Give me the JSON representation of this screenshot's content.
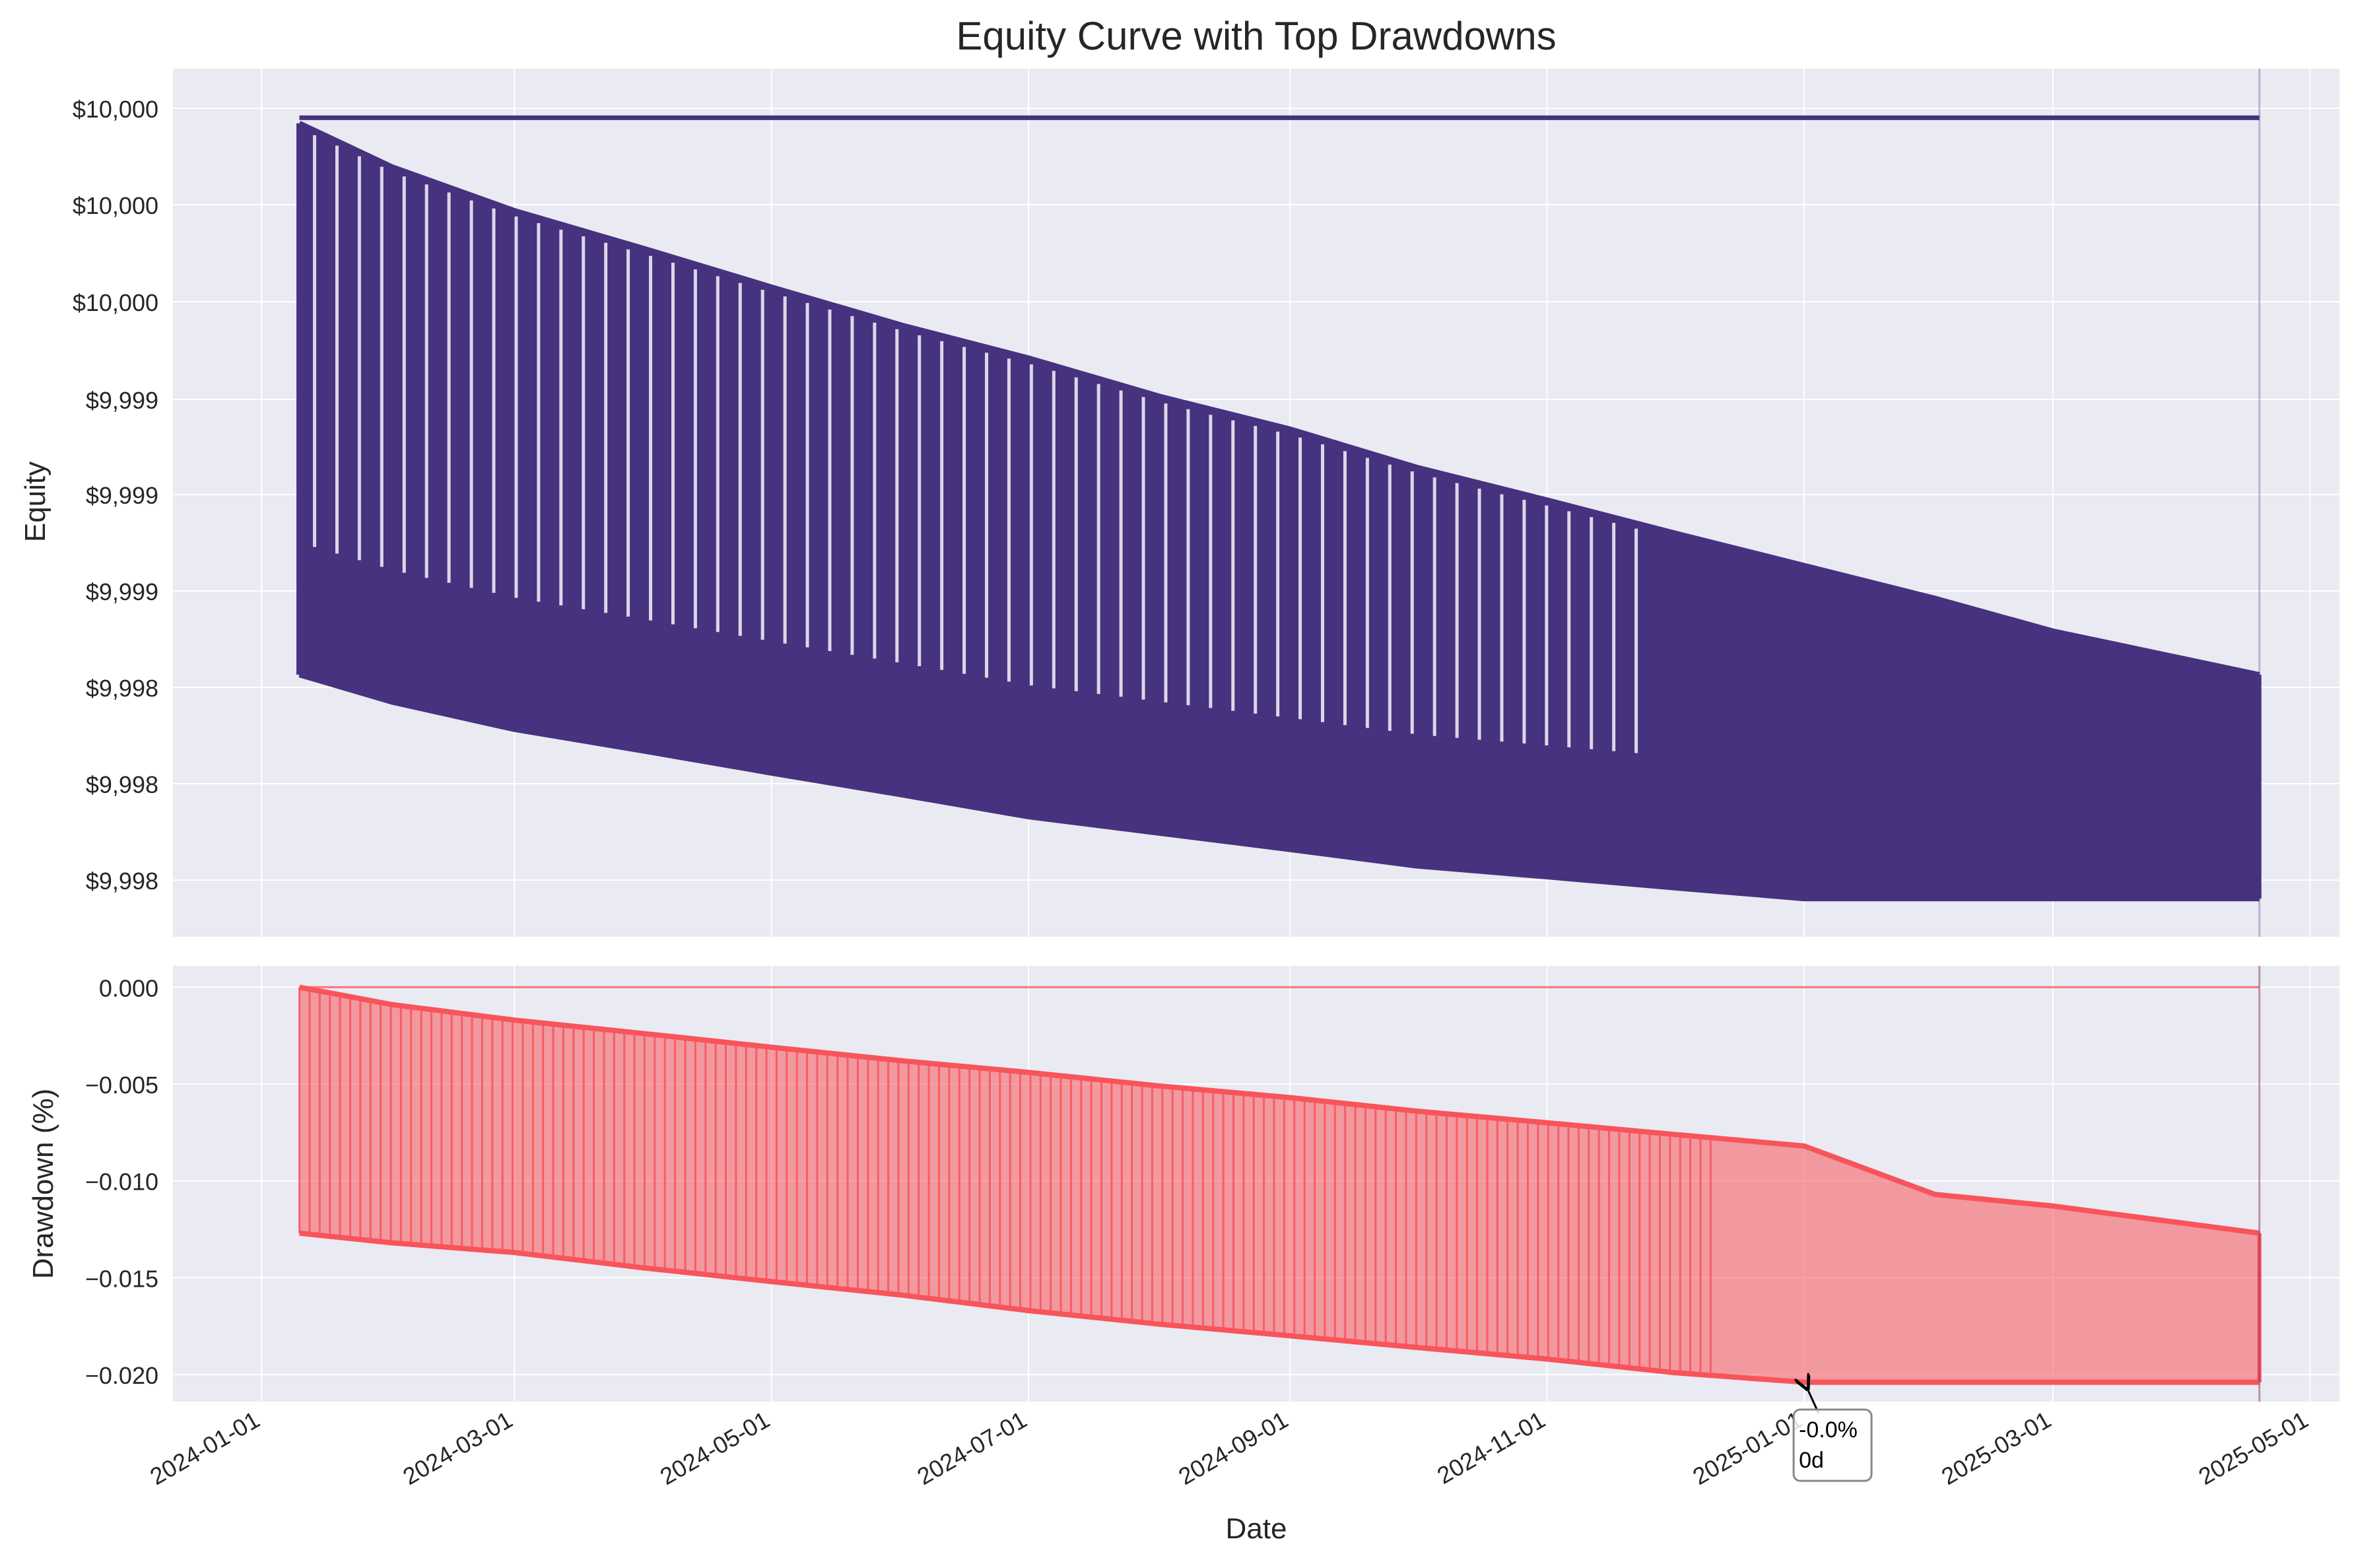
{
  "chart_data": {
    "type": "line",
    "title": "Equity Curve with Top Drawdowns",
    "xlabel": "Date",
    "x_ticks": [
      "2024-01-01",
      "2024-03-01",
      "2024-05-01",
      "2024-07-01",
      "2024-09-01",
      "2024-11-01",
      "2025-01-01",
      "2025-03-01",
      "2025-05-01"
    ],
    "x_range": [
      "2023-12-11",
      "2025-05-08"
    ],
    "grid": true,
    "legend": "none",
    "colors": {
      "equity": "#46327e",
      "drawdown": "#f8545b",
      "background": "#eaeaf2"
    },
    "panels": [
      {
        "name": "equity",
        "ylabel": "Equity",
        "y_ticks": [
          "$10,000",
          "$10,000",
          "$10,000",
          "$9,999",
          "$9,999",
          "$9,999",
          "$9,998",
          "$9,998",
          "$9,998"
        ],
        "series": [
          {
            "peak_value": 10000.0,
            "x": [
              "2024-01-10",
              "2024-02-01",
              "2024-03-01",
              "2024-04-01",
              "2024-05-01",
              "2024-06-01",
              "2024-07-01",
              "2024-08-01",
              "2024-09-01",
              "2024-10-01",
              "2024-11-01",
              "2024-12-01",
              "2025-01-01",
              "2025-02-01",
              "2025-03-01",
              "2025-04-19"
            ],
            "upper_envelope": [
              9999.99,
              9999.91,
              9999.83,
              9999.76,
              9999.69,
              9999.62,
              9999.56,
              9999.49,
              9999.43,
              9999.36,
              9999.3,
              9999.24,
              9999.18,
              9999.12,
              9999.06,
              9998.98
            ],
            "lower_envelope": [
              9998.98,
              9998.93,
              9998.88,
              9998.84,
              9998.8,
              9998.76,
              9998.72,
              9998.69,
              9998.66,
              9998.63,
              9998.61,
              9998.59,
              9998.57,
              9998.57,
              9998.57,
              9998.57
            ]
          }
        ]
      },
      {
        "name": "drawdown",
        "ylabel": "Drawdown (%)",
        "y_ticks": [
          "0.000",
          "−0.005",
          "−0.010",
          "−0.015",
          "−0.020"
        ],
        "ylim": [
          -0.0214,
          0.0011
        ],
        "series": [
          {
            "x": [
              "2024-01-10",
              "2024-02-01",
              "2024-03-01",
              "2024-04-01",
              "2024-05-01",
              "2024-06-01",
              "2024-07-01",
              "2024-08-01",
              "2024-09-01",
              "2024-10-01",
              "2024-11-01",
              "2024-12-01",
              "2025-01-01",
              "2025-02-01",
              "2025-03-01",
              "2025-04-19"
            ],
            "upper_envelope": [
              0.0,
              -0.0009,
              -0.0017,
              -0.0024,
              -0.0031,
              -0.0038,
              -0.0044,
              -0.0051,
              -0.0057,
              -0.0064,
              -0.007,
              -0.0076,
              -0.0082,
              -0.0107,
              -0.0113,
              -0.0127
            ],
            "lower_envelope": [
              -0.0127,
              -0.0132,
              -0.0137,
              -0.0145,
              -0.0152,
              -0.0159,
              -0.0167,
              -0.0174,
              -0.018,
              -0.0186,
              -0.0192,
              -0.0199,
              -0.0204,
              -0.0204,
              -0.0204,
              -0.0204
            ]
          }
        ],
        "annotations": [
          {
            "text_line1": "-0.0%",
            "text_line2": "0d",
            "x": "2025-01-01",
            "y": -0.0204
          }
        ]
      }
    ]
  }
}
